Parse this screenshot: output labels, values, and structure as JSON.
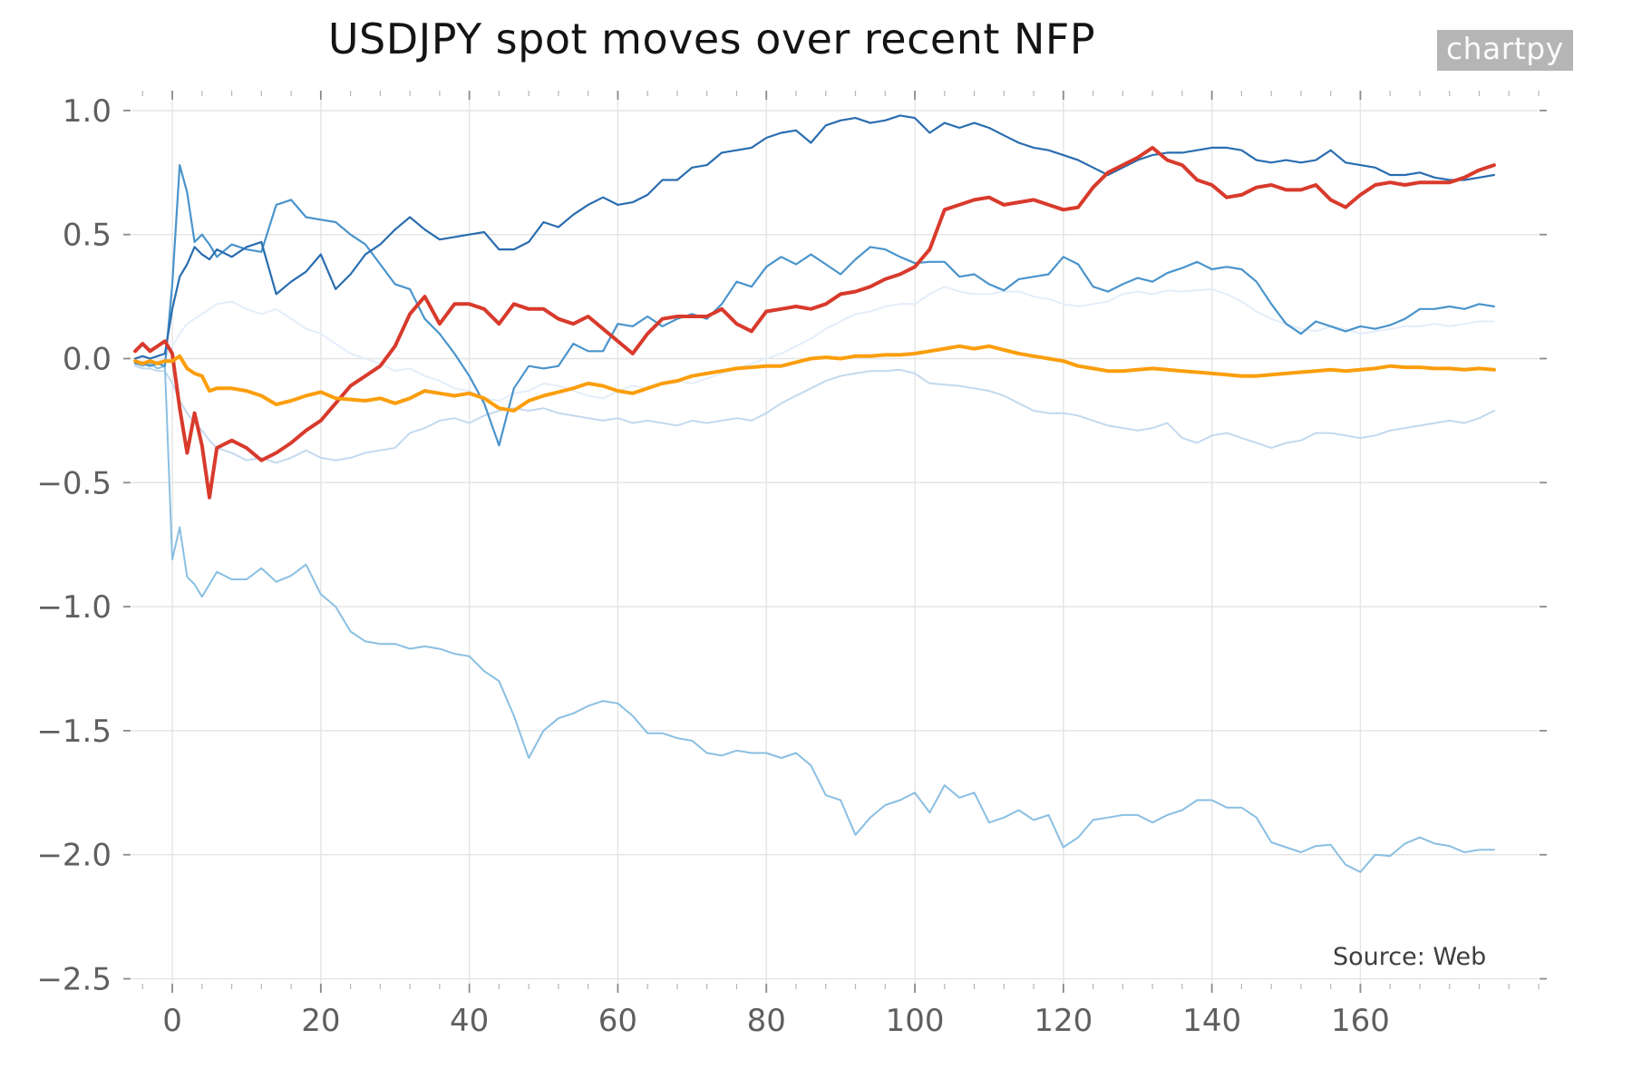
{
  "title": "USDJPY spot moves over recent NFP",
  "watermark": "chartpy",
  "source_note": "Source: Web",
  "colors": {
    "background": "#ffffff",
    "grid": "#e4e4e4",
    "tick_mark_major": "#8a8a8a",
    "tick_mark_minor": "#b5b5b5",
    "tick_label": "#5f5f5f",
    "title_text": "#141414",
    "watermark_bg": "#b5b5b5",
    "watermark_text": "#fbfbfb",
    "source_text": "#3e3e3e"
  },
  "chart_data": {
    "type": "line",
    "title": "USDJPY spot moves over recent NFP",
    "xlabel": "",
    "ylabel": "",
    "grid": true,
    "legend_position": "none",
    "xlim": [
      -5.5,
      184
    ],
    "ylim": [
      -2.52,
      1.08
    ],
    "xticks": [
      0,
      20,
      40,
      60,
      80,
      100,
      120,
      140,
      160
    ],
    "xtick_labels": [
      "0",
      "20",
      "40",
      "60",
      "80",
      "100",
      "120",
      "140",
      "160"
    ],
    "minor_xtick_step": 4,
    "yticks": [
      1.0,
      0.5,
      0.0,
      -0.5,
      -1.0,
      -1.5,
      -2.0,
      -2.5
    ],
    "ytick_labels": [
      "1.0",
      "0.5",
      "0.0",
      "−0.5",
      "−1.0",
      "−1.5",
      "−2.0",
      "−2.5"
    ],
    "x": [
      -5,
      -4,
      -3,
      -2,
      -1,
      0,
      1,
      2,
      3,
      4,
      5,
      6,
      8,
      10,
      12,
      14,
      16,
      18,
      20,
      22,
      24,
      26,
      28,
      30,
      32,
      34,
      36,
      38,
      40,
      42,
      44,
      46,
      48,
      50,
      52,
      54,
      56,
      58,
      60,
      62,
      64,
      66,
      68,
      70,
      72,
      74,
      76,
      78,
      80,
      82,
      84,
      86,
      88,
      90,
      92,
      94,
      96,
      98,
      100,
      102,
      104,
      106,
      108,
      110,
      112,
      114,
      116,
      118,
      120,
      122,
      124,
      126,
      128,
      130,
      132,
      134,
      136,
      138,
      140,
      142,
      144,
      146,
      148,
      150,
      152,
      154,
      156,
      158,
      160,
      162,
      164,
      166,
      168,
      170,
      172,
      174,
      176,
      178
    ],
    "series": [
      {
        "name": "line-blue-faintest",
        "color": "#e4eefa",
        "width": 2,
        "values": [
          -0.02,
          -0.01,
          -0.02,
          -0.01,
          0.0,
          0.05,
          0.1,
          0.14,
          0.16,
          0.18,
          0.2,
          0.22,
          0.23,
          0.2,
          0.18,
          0.2,
          0.16,
          0.12,
          0.1,
          0.06,
          0.02,
          0.0,
          -0.02,
          -0.05,
          -0.04,
          -0.07,
          -0.09,
          -0.12,
          -0.13,
          -0.16,
          -0.17,
          -0.14,
          -0.13,
          -0.1,
          -0.11,
          -0.13,
          -0.15,
          -0.16,
          -0.13,
          -0.11,
          -0.12,
          -0.1,
          -0.09,
          -0.1,
          -0.08,
          -0.06,
          -0.04,
          -0.02,
          0.0,
          0.02,
          0.05,
          0.08,
          0.12,
          0.15,
          0.18,
          0.19,
          0.21,
          0.22,
          0.22,
          0.26,
          0.29,
          0.27,
          0.26,
          0.26,
          0.27,
          0.27,
          0.25,
          0.24,
          0.22,
          0.21,
          0.22,
          0.23,
          0.26,
          0.27,
          0.26,
          0.275,
          0.27,
          0.275,
          0.28,
          0.26,
          0.23,
          0.19,
          0.16,
          0.14,
          0.12,
          0.11,
          0.13,
          0.12,
          0.1,
          0.11,
          0.12,
          0.13,
          0.13,
          0.14,
          0.13,
          0.14,
          0.15,
          0.15
        ]
      },
      {
        "name": "line-blue-pale",
        "color": "#c3d9ee",
        "width": 2,
        "values": [
          -0.03,
          -0.04,
          -0.04,
          -0.05,
          -0.05,
          -0.1,
          -0.17,
          -0.22,
          -0.26,
          -0.29,
          -0.33,
          -0.36,
          -0.38,
          -0.41,
          -0.4,
          -0.42,
          -0.4,
          -0.37,
          -0.4,
          -0.41,
          -0.4,
          -0.38,
          -0.37,
          -0.36,
          -0.3,
          -0.28,
          -0.25,
          -0.24,
          -0.26,
          -0.23,
          -0.21,
          -0.2,
          -0.21,
          -0.2,
          -0.22,
          -0.23,
          -0.24,
          -0.25,
          -0.24,
          -0.26,
          -0.25,
          -0.26,
          -0.27,
          -0.25,
          -0.26,
          -0.25,
          -0.24,
          -0.25,
          -0.22,
          -0.18,
          -0.15,
          -0.12,
          -0.09,
          -0.07,
          -0.06,
          -0.05,
          -0.05,
          -0.045,
          -0.06,
          -0.1,
          -0.105,
          -0.11,
          -0.12,
          -0.13,
          -0.15,
          -0.18,
          -0.21,
          -0.22,
          -0.22,
          -0.23,
          -0.25,
          -0.27,
          -0.28,
          -0.29,
          -0.28,
          -0.26,
          -0.32,
          -0.34,
          -0.31,
          -0.3,
          -0.32,
          -0.34,
          -0.36,
          -0.34,
          -0.33,
          -0.3,
          -0.3,
          -0.31,
          -0.32,
          -0.31,
          -0.29,
          -0.28,
          -0.27,
          -0.26,
          -0.25,
          -0.26,
          -0.24,
          -0.21
        ]
      },
      {
        "name": "line-blue-light",
        "color": "#8abfe2",
        "width": 2,
        "values": [
          -0.02,
          -0.03,
          -0.02,
          -0.04,
          -0.03,
          -0.81,
          -0.68,
          -0.88,
          -0.91,
          -0.96,
          -0.91,
          -0.86,
          -0.89,
          -0.89,
          -0.845,
          -0.9,
          -0.875,
          -0.83,
          -0.95,
          -1.0,
          -1.1,
          -1.14,
          -1.15,
          -1.15,
          -1.17,
          -1.16,
          -1.17,
          -1.19,
          -1.2,
          -1.26,
          -1.3,
          -1.44,
          -1.61,
          -1.5,
          -1.45,
          -1.43,
          -1.4,
          -1.38,
          -1.39,
          -1.44,
          -1.51,
          -1.51,
          -1.53,
          -1.54,
          -1.59,
          -1.6,
          -1.58,
          -1.59,
          -1.59,
          -1.61,
          -1.59,
          -1.64,
          -1.76,
          -1.78,
          -1.92,
          -1.85,
          -1.8,
          -1.78,
          -1.75,
          -1.83,
          -1.72,
          -1.77,
          -1.75,
          -1.87,
          -1.85,
          -1.82,
          -1.86,
          -1.84,
          -1.97,
          -1.93,
          -1.86,
          -1.85,
          -1.84,
          -1.84,
          -1.87,
          -1.84,
          -1.82,
          -1.78,
          -1.78,
          -1.81,
          -1.81,
          -1.85,
          -1.95,
          -1.97,
          -1.99,
          -1.965,
          -1.96,
          -2.04,
          -2.07,
          -2.0,
          -2.005,
          -1.955,
          -1.93,
          -1.955,
          -1.965,
          -1.99,
          -1.98,
          -1.98
        ]
      },
      {
        "name": "line-blue-medium",
        "color": "#4a94cc",
        "width": 2.2,
        "values": [
          -0.02,
          -0.02,
          -0.03,
          -0.02,
          -0.03,
          0.3,
          0.78,
          0.67,
          0.47,
          0.5,
          0.46,
          0.41,
          0.46,
          0.44,
          0.43,
          0.62,
          0.64,
          0.57,
          0.56,
          0.55,
          0.5,
          0.46,
          0.38,
          0.3,
          0.28,
          0.16,
          0.1,
          0.02,
          -0.07,
          -0.18,
          -0.35,
          -0.12,
          -0.03,
          -0.04,
          -0.03,
          0.06,
          0.03,
          0.03,
          0.14,
          0.13,
          0.17,
          0.13,
          0.16,
          0.18,
          0.16,
          0.22,
          0.31,
          0.29,
          0.37,
          0.41,
          0.38,
          0.42,
          0.38,
          0.34,
          0.4,
          0.45,
          0.44,
          0.41,
          0.385,
          0.39,
          0.39,
          0.33,
          0.34,
          0.3,
          0.275,
          0.32,
          0.33,
          0.34,
          0.41,
          0.38,
          0.29,
          0.27,
          0.3,
          0.325,
          0.31,
          0.345,
          0.365,
          0.39,
          0.36,
          0.37,
          0.36,
          0.31,
          0.22,
          0.14,
          0.1,
          0.15,
          0.13,
          0.11,
          0.13,
          0.12,
          0.135,
          0.16,
          0.2,
          0.2,
          0.21,
          0.2,
          0.22,
          0.21
        ]
      },
      {
        "name": "line-blue-dark",
        "color": "#2a6db0",
        "width": 2.2,
        "values": [
          0.0,
          0.01,
          0.0,
          0.01,
          0.02,
          0.2,
          0.33,
          0.38,
          0.45,
          0.42,
          0.4,
          0.44,
          0.41,
          0.45,
          0.47,
          0.26,
          0.31,
          0.35,
          0.42,
          0.28,
          0.34,
          0.42,
          0.46,
          0.52,
          0.57,
          0.52,
          0.48,
          0.49,
          0.5,
          0.51,
          0.44,
          0.44,
          0.47,
          0.55,
          0.53,
          0.58,
          0.62,
          0.65,
          0.62,
          0.63,
          0.66,
          0.72,
          0.72,
          0.77,
          0.78,
          0.83,
          0.84,
          0.85,
          0.89,
          0.91,
          0.92,
          0.87,
          0.94,
          0.96,
          0.97,
          0.95,
          0.96,
          0.98,
          0.97,
          0.91,
          0.95,
          0.93,
          0.95,
          0.93,
          0.9,
          0.87,
          0.85,
          0.84,
          0.82,
          0.8,
          0.77,
          0.74,
          0.77,
          0.8,
          0.82,
          0.83,
          0.83,
          0.84,
          0.85,
          0.85,
          0.84,
          0.8,
          0.79,
          0.8,
          0.79,
          0.8,
          0.84,
          0.79,
          0.78,
          0.77,
          0.74,
          0.74,
          0.75,
          0.73,
          0.72,
          0.72,
          0.73,
          0.74
        ]
      },
      {
        "name": "line-red-latest",
        "color": "#d83a2c",
        "width": 4,
        "values": [
          0.03,
          0.06,
          0.03,
          0.05,
          0.07,
          0.02,
          -0.2,
          -0.38,
          -0.22,
          -0.35,
          -0.56,
          -0.36,
          -0.33,
          -0.36,
          -0.41,
          -0.38,
          -0.34,
          -0.29,
          -0.25,
          -0.18,
          -0.11,
          -0.07,
          -0.03,
          0.05,
          0.18,
          0.25,
          0.14,
          0.22,
          0.22,
          0.2,
          0.14,
          0.22,
          0.2,
          0.2,
          0.16,
          0.14,
          0.17,
          0.12,
          0.07,
          0.02,
          0.1,
          0.16,
          0.17,
          0.17,
          0.17,
          0.2,
          0.14,
          0.11,
          0.19,
          0.2,
          0.21,
          0.2,
          0.22,
          0.26,
          0.27,
          0.29,
          0.32,
          0.34,
          0.37,
          0.44,
          0.6,
          0.62,
          0.64,
          0.65,
          0.62,
          0.63,
          0.64,
          0.62,
          0.6,
          0.61,
          0.69,
          0.75,
          0.78,
          0.81,
          0.85,
          0.8,
          0.78,
          0.72,
          0.7,
          0.65,
          0.66,
          0.69,
          0.7,
          0.68,
          0.68,
          0.7,
          0.64,
          0.61,
          0.66,
          0.7,
          0.71,
          0.7,
          0.71,
          0.71,
          0.71,
          0.73,
          0.76,
          0.78
        ]
      },
      {
        "name": "line-orange-average",
        "color": "#fb9e0c",
        "width": 4,
        "values": [
          -0.01,
          -0.02,
          -0.01,
          -0.02,
          -0.01,
          -0.01,
          0.01,
          -0.04,
          -0.06,
          -0.07,
          -0.13,
          -0.12,
          -0.12,
          -0.13,
          -0.15,
          -0.185,
          -0.17,
          -0.15,
          -0.135,
          -0.16,
          -0.165,
          -0.17,
          -0.16,
          -0.18,
          -0.16,
          -0.13,
          -0.14,
          -0.15,
          -0.14,
          -0.16,
          -0.2,
          -0.21,
          -0.17,
          -0.15,
          -0.135,
          -0.12,
          -0.1,
          -0.11,
          -0.13,
          -0.14,
          -0.12,
          -0.1,
          -0.09,
          -0.07,
          -0.06,
          -0.05,
          -0.04,
          -0.035,
          -0.03,
          -0.03,
          -0.015,
          0.0,
          0.005,
          0.0,
          0.01,
          0.01,
          0.015,
          0.015,
          0.02,
          0.03,
          0.04,
          0.05,
          0.04,
          0.05,
          0.035,
          0.02,
          0.01,
          0.0,
          -0.01,
          -0.03,
          -0.04,
          -0.05,
          -0.05,
          -0.045,
          -0.04,
          -0.045,
          -0.05,
          -0.055,
          -0.06,
          -0.065,
          -0.07,
          -0.07,
          -0.065,
          -0.06,
          -0.055,
          -0.05,
          -0.045,
          -0.05,
          -0.045,
          -0.04,
          -0.03,
          -0.035,
          -0.035,
          -0.04,
          -0.04,
          -0.045,
          -0.04,
          -0.045
        ]
      }
    ]
  }
}
